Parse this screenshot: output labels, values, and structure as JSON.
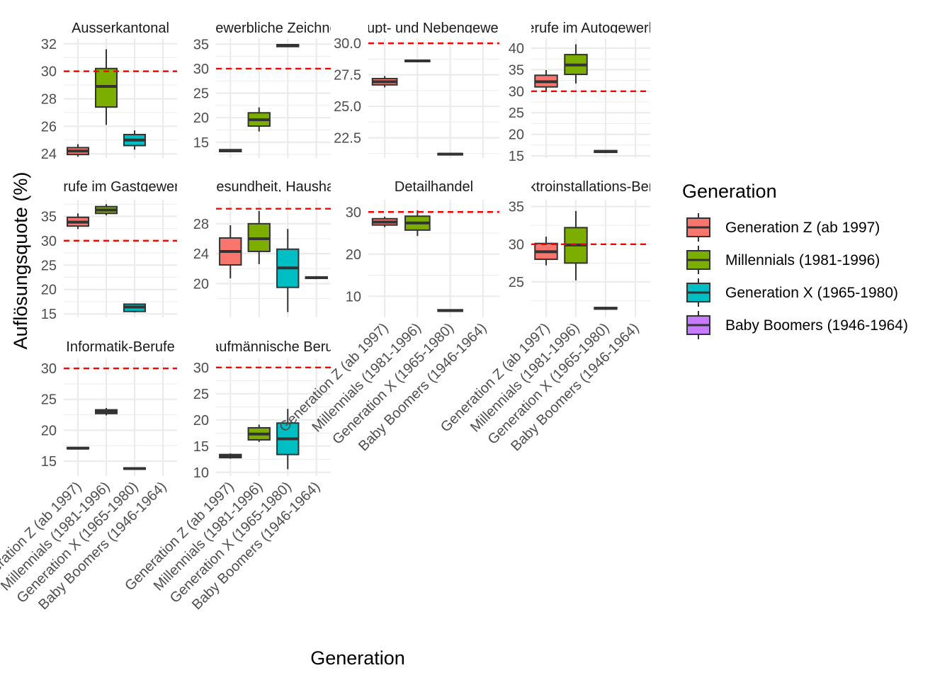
{
  "chart_data": {
    "type": "boxplot-facets",
    "ylabel": "Auflösungsquote (%)",
    "xlabel": "Generation",
    "legend": {
      "title": "Generation",
      "position": "right",
      "entries": [
        {
          "label": "Generation Z (ab 1997)",
          "color": "#F8766D"
        },
        {
          "label": "Millennials (1981-1996)",
          "color": "#7CAE00"
        },
        {
          "label": "Generation X (1965-1980)",
          "color": "#00BFC4"
        },
        {
          "label": "Baby Boomers (1946-1964)",
          "color": "#C77CFF"
        }
      ]
    },
    "categories": [
      "Generation Z (ab 1997)",
      "Millennials (1981-1996)",
      "Generation X (1965-1980)",
      "Baby Boomers (1946-1964)"
    ],
    "reference_line": 30,
    "reference_line_color": "#FF0000",
    "facets": [
      {
        "title": "Ausserkantonal",
        "ylim": [
          23.7,
          32.4
        ],
        "ticks": [
          24,
          26,
          28,
          30,
          32
        ],
        "boxes": [
          {
            "gen": 0,
            "min": 23.8,
            "q1": 23.95,
            "median": 24.2,
            "q3": 24.45,
            "max": 24.7
          },
          {
            "gen": 1,
            "min": 26.1,
            "q1": 27.4,
            "median": 28.9,
            "q3": 30.2,
            "max": 31.6
          },
          {
            "gen": 2,
            "min": 24.3,
            "q1": 24.6,
            "median": 25.0,
            "q3": 25.4,
            "max": 25.7
          }
        ]
      },
      {
        "title": "Gewerbliche Zeichner",
        "ylim": [
          11.8,
          36.2
        ],
        "ticks": [
          15,
          20,
          25,
          30,
          35
        ],
        "boxes": [
          {
            "gen": 0,
            "min": 13.0,
            "q1": 13.1,
            "median": 13.3,
            "q3": 13.5,
            "max": 13.6
          },
          {
            "gen": 1,
            "min": 17.2,
            "q1": 18.3,
            "median": 19.6,
            "q3": 21.0,
            "max": 22.1
          },
          {
            "gen": 2,
            "min": 34.4,
            "q1": 34.5,
            "median": 34.7,
            "q3": 34.9,
            "max": 35.0
          }
        ]
      },
      {
        "title": "Haupt- und Nebengewerbe",
        "ylim": [
          20.9,
          30.4
        ],
        "ticks": [
          22.5,
          25.0,
          27.5,
          30.0
        ],
        "boxes": [
          {
            "gen": 0,
            "min": 26.5,
            "q1": 26.7,
            "median": 26.95,
            "q3": 27.2,
            "max": 27.4
          },
          {
            "gen": 1,
            "min": 28.5,
            "q1": 28.55,
            "median": 28.6,
            "q3": 28.65,
            "max": 28.7
          },
          {
            "gen": 2,
            "min": 21.1,
            "q1": 21.15,
            "median": 21.2,
            "q3": 21.25,
            "max": 21.3
          }
        ]
      },
      {
        "title": "Berufe im Autogewerbe",
        "ylim": [
          14.5,
          42.3
        ],
        "ticks": [
          15,
          20,
          25,
          30,
          35,
          40
        ],
        "boxes": [
          {
            "gen": 0,
            "min": 29.9,
            "q1": 31.0,
            "median": 32.2,
            "q3": 33.7,
            "max": 34.9
          },
          {
            "gen": 1,
            "min": 31.8,
            "q1": 33.9,
            "median": 36.1,
            "q3": 38.5,
            "max": 40.9
          },
          {
            "gen": 2,
            "min": 15.7,
            "q1": 15.8,
            "median": 16.0,
            "q3": 16.2,
            "max": 16.3
          }
        ]
      },
      {
        "title": "Berufe im Gastgewerbe",
        "ylim": [
          14.3,
          38.4
        ],
        "ticks": [
          15,
          20,
          25,
          30,
          35
        ],
        "boxes": [
          {
            "gen": 0,
            "min": 32.4,
            "q1": 33.0,
            "median": 33.8,
            "q3": 34.8,
            "max": 35.6
          },
          {
            "gen": 1,
            "min": 35.2,
            "q1": 35.6,
            "median": 36.3,
            "q3": 37.0,
            "max": 37.5
          },
          {
            "gen": 2,
            "min": 15.3,
            "q1": 15.5,
            "median": 16.4,
            "q3": 17.0,
            "max": 17.1
          }
        ]
      },
      {
        "title": "Gesundheit, Haushalt",
        "ylim": [
          15.5,
          31.2
        ],
        "ticks": [
          20,
          24,
          28
        ],
        "boxes": [
          {
            "gen": 0,
            "min": 20.7,
            "q1": 22.5,
            "median": 24.3,
            "q3": 26.1,
            "max": 27.8
          },
          {
            "gen": 1,
            "min": 22.6,
            "q1": 24.3,
            "median": 26.0,
            "q3": 28.0,
            "max": 29.7
          },
          {
            "gen": 2,
            "min": 16.2,
            "q1": 19.5,
            "median": 22.1,
            "q3": 24.6,
            "max": 27.3
          },
          {
            "gen": 3,
            "min": 20.6,
            "q1": 20.7,
            "median": 20.8,
            "q3": 20.9,
            "max": 21.0
          }
        ]
      },
      {
        "title": "Detailhandel",
        "ylim": [
          5.0,
          32.9
        ],
        "ticks": [
          10,
          20,
          30
        ],
        "boxes": [
          {
            "gen": 0,
            "min": 26.4,
            "q1": 26.9,
            "median": 27.6,
            "q3": 28.4,
            "max": 28.9
          },
          {
            "gen": 1,
            "min": 24.3,
            "q1": 25.7,
            "median": 27.4,
            "q3": 29.0,
            "max": 30.4
          },
          {
            "gen": 2,
            "min": 6.3,
            "q1": 6.45,
            "median": 6.6,
            "q3": 6.8,
            "max": 6.9
          }
        ]
      },
      {
        "title": "Elektroinstallations-Berufe",
        "ylim": [
          20.3,
          35.9
        ],
        "ticks": [
          25,
          30,
          35
        ],
        "boxes": [
          {
            "gen": 0,
            "min": 27.2,
            "q1": 28.0,
            "median": 29.0,
            "q3": 30.1,
            "max": 31.0
          },
          {
            "gen": 1,
            "min": 25.2,
            "q1": 27.5,
            "median": 29.9,
            "q3": 32.2,
            "max": 34.4
          },
          {
            "gen": 2,
            "min": 21.3,
            "q1": 21.4,
            "median": 21.5,
            "q3": 21.6,
            "max": 21.7
          }
        ]
      },
      {
        "title": "Informatik-Berufe",
        "ylim": [
          12.6,
          31.5
        ],
        "ticks": [
          15,
          20,
          25,
          30
        ],
        "boxes": [
          {
            "gen": 0,
            "min": 16.9,
            "q1": 17.0,
            "median": 17.1,
            "q3": 17.2,
            "max": 17.3
          },
          {
            "gen": 1,
            "min": 22.4,
            "q1": 22.7,
            "median": 23.0,
            "q3": 23.3,
            "max": 23.6
          },
          {
            "gen": 2,
            "min": 13.6,
            "q1": 13.7,
            "median": 13.8,
            "q3": 13.9,
            "max": 14.0
          }
        ]
      },
      {
        "title": "Kaufmännische Berufe",
        "ylim": [
          9.3,
          31.6
        ],
        "ticks": [
          10,
          15,
          20,
          25,
          30
        ],
        "boxes": [
          {
            "gen": 0,
            "min": 12.6,
            "q1": 12.8,
            "median": 13.1,
            "q3": 13.4,
            "max": 13.6
          },
          {
            "gen": 1,
            "min": 15.8,
            "q1": 16.2,
            "median": 17.3,
            "q3": 18.5,
            "max": 19.1
          },
          {
            "gen": 2,
            "min": 10.6,
            "q1": 13.4,
            "median": 16.4,
            "q3": 19.4,
            "max": 22.1
          }
        ]
      }
    ]
  }
}
